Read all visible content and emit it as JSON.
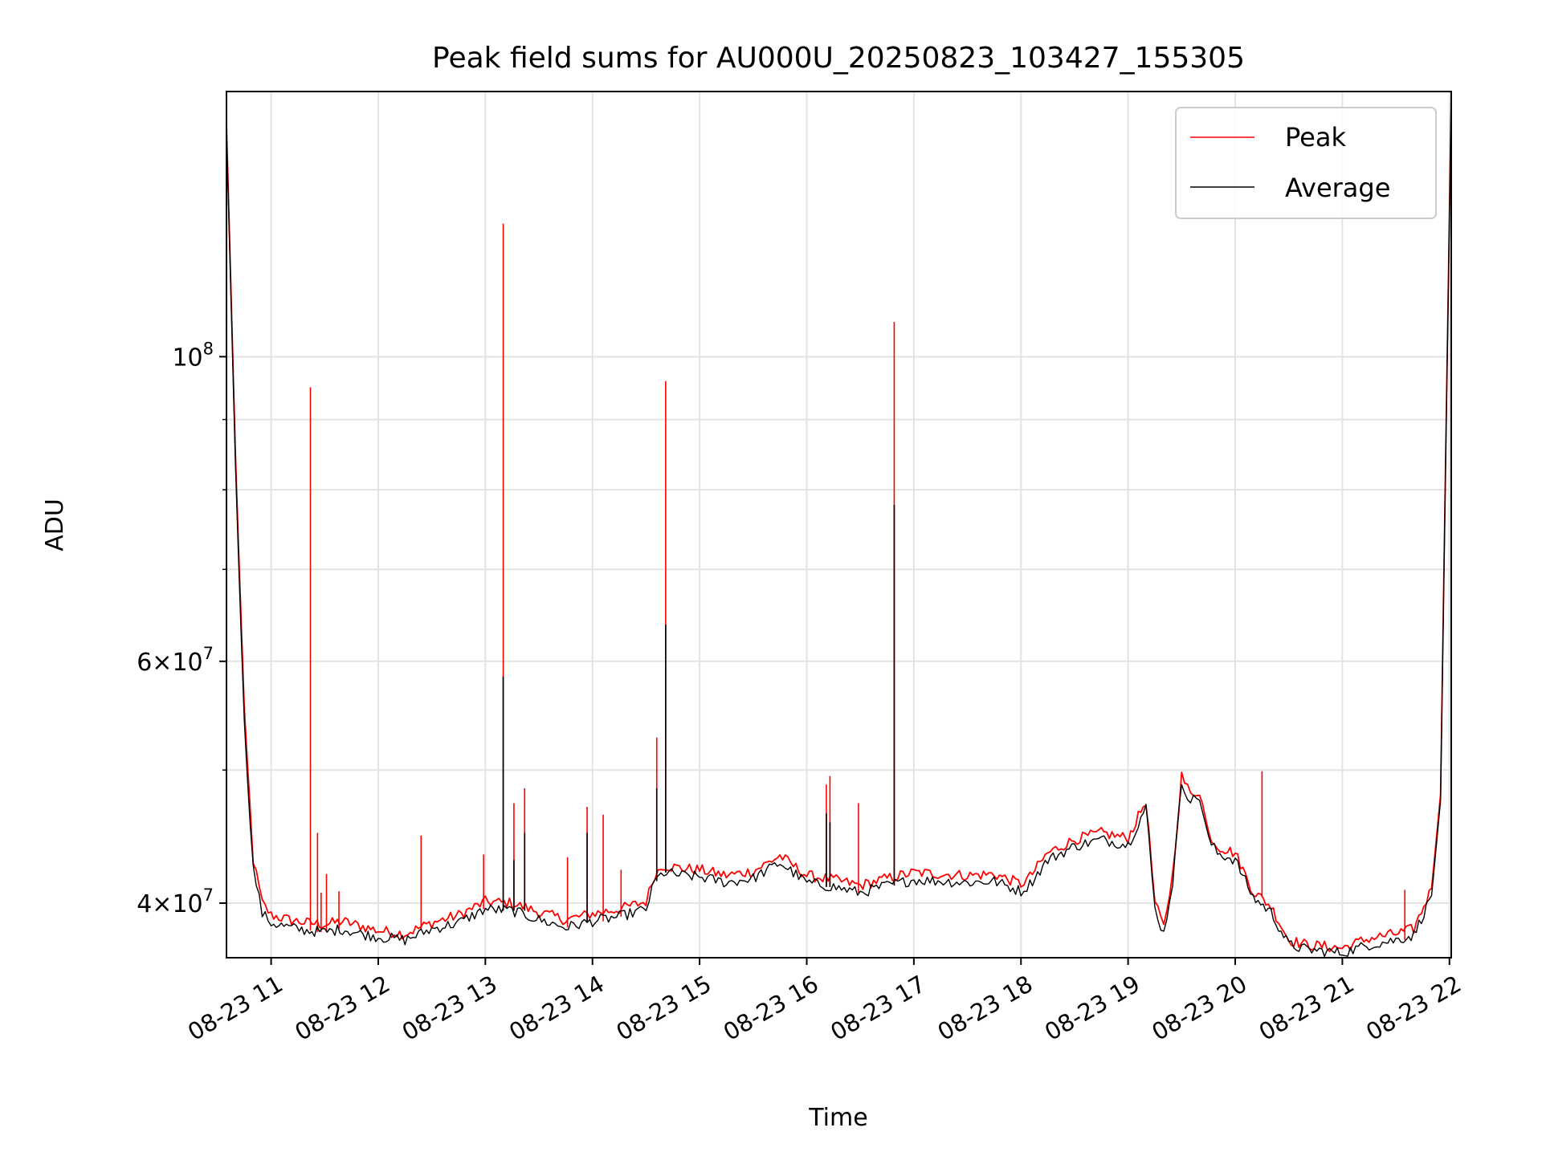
{
  "chart_data": {
    "type": "line",
    "title": "Peak field sums for AU000U_20250823_103427_155305",
    "xlabel": "Time",
    "ylabel": "ADU",
    "yscale": "log",
    "xlim": [
      "2025-08-23 10:35",
      "2025-08-23 22:01"
    ],
    "ylim": [
      36500000,
      156000000
    ],
    "grid": true,
    "legend": {
      "placement": "top-right"
    },
    "x_ticks": [
      "2025-08-23 11:00",
      "2025-08-23 12:00",
      "2025-08-23 13:00",
      "2025-08-23 14:00",
      "2025-08-23 15:00",
      "2025-08-23 16:00",
      "2025-08-23 17:00",
      "2025-08-23 18:00",
      "2025-08-23 19:00",
      "2025-08-23 20:00",
      "2025-08-23 21:00",
      "2025-08-23 22:00"
    ],
    "x_tick_labels": [
      "08-23 11",
      "08-23 12",
      "08-23 13",
      "08-23 14",
      "08-23 15",
      "08-23 16",
      "08-23 17",
      "08-23 18",
      "08-23 19",
      "08-23 20",
      "08-23 21",
      "08-23 22"
    ],
    "y_ticks": [
      {
        "value": 40000000,
        "base": "4×10",
        "exp": "7"
      },
      {
        "value": 60000000,
        "base": "6×10",
        "exp": "7"
      },
      {
        "value": 100000000,
        "base": "10",
        "exp": "8"
      }
    ],
    "y_minor_ticks": [
      50000000,
      70000000,
      80000000,
      90000000
    ],
    "series": [
      {
        "name": "Peak",
        "color": "#ff0000",
        "x": [
          "2025-08-23 10:35",
          "2025-08-23 10:40",
          "2025-08-23 10:45",
          "2025-08-23 10:50",
          "2025-08-23 10:55",
          "2025-08-23 11:00",
          "2025-08-23 11:10",
          "2025-08-23 11:20",
          "2025-08-23 11:30",
          "2025-08-23 11:40",
          "2025-08-23 11:50",
          "2025-08-23 12:00",
          "2025-08-23 12:15",
          "2025-08-23 12:30",
          "2025-08-23 12:45",
          "2025-08-23 13:00",
          "2025-08-23 13:15",
          "2025-08-23 13:30",
          "2025-08-23 13:45",
          "2025-08-23 14:00",
          "2025-08-23 14:15",
          "2025-08-23 14:30",
          "2025-08-23 14:35",
          "2025-08-23 14:40",
          "2025-08-23 14:50",
          "2025-08-23 15:00",
          "2025-08-23 15:15",
          "2025-08-23 15:30",
          "2025-08-23 15:45",
          "2025-08-23 16:00",
          "2025-08-23 16:15",
          "2025-08-23 16:30",
          "2025-08-23 16:45",
          "2025-08-23 17:00",
          "2025-08-23 17:15",
          "2025-08-23 17:30",
          "2025-08-23 17:45",
          "2025-08-23 18:00",
          "2025-08-23 18:05",
          "2025-08-23 18:15",
          "2025-08-23 18:30",
          "2025-08-23 18:45",
          "2025-08-23 19:00",
          "2025-08-23 19:10",
          "2025-08-23 19:15",
          "2025-08-23 19:20",
          "2025-08-23 19:25",
          "2025-08-23 19:30",
          "2025-08-23 19:35",
          "2025-08-23 19:40",
          "2025-08-23 19:45",
          "2025-08-23 19:50",
          "2025-08-23 20:00",
          "2025-08-23 20:10",
          "2025-08-23 20:20",
          "2025-08-23 20:30",
          "2025-08-23 20:40",
          "2025-08-23 20:50",
          "2025-08-23 21:00",
          "2025-08-23 21:15",
          "2025-08-23 21:30",
          "2025-08-23 21:40",
          "2025-08-23 21:50",
          "2025-08-23 21:55",
          "2025-08-23 22:01"
        ],
        "y": [
          148000000,
          85000000,
          55000000,
          43000000,
          40000000,
          39200000,
          38900000,
          38700000,
          38600000,
          38800000,
          38500000,
          38200000,
          38000000,
          38700000,
          39200000,
          40100000,
          40000000,
          39400000,
          38900000,
          39300000,
          39600000,
          40100000,
          42000000,
          42600000,
          42400000,
          42300000,
          41900000,
          42200000,
          43300000,
          41900000,
          41600000,
          41200000,
          41700000,
          42100000,
          42000000,
          41900000,
          42000000,
          41300000,
          41800000,
          43500000,
          44500000,
          45000000,
          44600000,
          47500000,
          40000000,
          38400000,
          42000000,
          49500000,
          48000000,
          48300000,
          45000000,
          44000000,
          43500000,
          40800000,
          39800000,
          37600000,
          37300000,
          37200000,
          37100000,
          37700000,
          38000000,
          38300000,
          41000000,
          48000000,
          156000000
        ],
        "spikes": [
          {
            "x": "2025-08-23 11:22",
            "y": 95000000
          },
          {
            "x": "2025-08-23 11:26",
            "y": 45000000
          },
          {
            "x": "2025-08-23 11:28",
            "y": 40700000
          },
          {
            "x": "2025-08-23 11:31",
            "y": 42000000
          },
          {
            "x": "2025-08-23 11:38",
            "y": 40800000
          },
          {
            "x": "2025-08-23 12:24",
            "y": 44800000
          },
          {
            "x": "2025-08-23 12:59",
            "y": 43400000
          },
          {
            "x": "2025-08-23 13:10",
            "y": 125000000
          },
          {
            "x": "2025-08-23 13:16",
            "y": 47300000
          },
          {
            "x": "2025-08-23 13:22",
            "y": 48500000
          },
          {
            "x": "2025-08-23 13:46",
            "y": 43200000
          },
          {
            "x": "2025-08-23 13:57",
            "y": 47000000
          },
          {
            "x": "2025-08-23 14:06",
            "y": 46400000
          },
          {
            "x": "2025-08-23 14:16",
            "y": 42300000
          },
          {
            "x": "2025-08-23 14:36",
            "y": 52800000
          },
          {
            "x": "2025-08-23 14:41",
            "y": 96000000
          },
          {
            "x": "2025-08-23 16:11",
            "y": 48800000
          },
          {
            "x": "2025-08-23 16:13",
            "y": 49500000
          },
          {
            "x": "2025-08-23 16:29",
            "y": 47300000
          },
          {
            "x": "2025-08-23 16:49",
            "y": 106000000
          },
          {
            "x": "2025-08-23 20:15",
            "y": 49900000
          },
          {
            "x": "2025-08-23 21:35",
            "y": 40900000
          }
        ]
      },
      {
        "name": "Average",
        "color": "#000000",
        "x": [
          "2025-08-23 10:35",
          "2025-08-23 10:40",
          "2025-08-23 10:45",
          "2025-08-23 10:50",
          "2025-08-23 10:55",
          "2025-08-23 11:00",
          "2025-08-23 11:10",
          "2025-08-23 11:20",
          "2025-08-23 11:30",
          "2025-08-23 11:40",
          "2025-08-23 11:50",
          "2025-08-23 12:00",
          "2025-08-23 12:15",
          "2025-08-23 12:30",
          "2025-08-23 12:45",
          "2025-08-23 13:00",
          "2025-08-23 13:15",
          "2025-08-23 13:30",
          "2025-08-23 13:45",
          "2025-08-23 14:00",
          "2025-08-23 14:15",
          "2025-08-23 14:30",
          "2025-08-23 14:35",
          "2025-08-23 14:40",
          "2025-08-23 14:50",
          "2025-08-23 15:00",
          "2025-08-23 15:15",
          "2025-08-23 15:30",
          "2025-08-23 15:45",
          "2025-08-23 16:00",
          "2025-08-23 16:15",
          "2025-08-23 16:30",
          "2025-08-23 16:45",
          "2025-08-23 17:00",
          "2025-08-23 17:15",
          "2025-08-23 17:30",
          "2025-08-23 17:45",
          "2025-08-23 18:00",
          "2025-08-23 18:05",
          "2025-08-23 18:15",
          "2025-08-23 18:30",
          "2025-08-23 18:45",
          "2025-08-23 19:00",
          "2025-08-23 19:10",
          "2025-08-23 19:15",
          "2025-08-23 19:20",
          "2025-08-23 19:25",
          "2025-08-23 19:30",
          "2025-08-23 19:35",
          "2025-08-23 19:40",
          "2025-08-23 19:45",
          "2025-08-23 19:50",
          "2025-08-23 20:00",
          "2025-08-23 20:10",
          "2025-08-23 20:20",
          "2025-08-23 20:30",
          "2025-08-23 20:40",
          "2025-08-23 20:50",
          "2025-08-23 21:00",
          "2025-08-23 21:15",
          "2025-08-23 21:30",
          "2025-08-23 21:40",
          "2025-08-23 21:50",
          "2025-08-23 21:55",
          "2025-08-23 22:01"
        ],
        "y": [
          146000000,
          84000000,
          54000000,
          42400000,
          39300000,
          38700000,
          38400000,
          38200000,
          38100000,
          38300000,
          38000000,
          37800000,
          37600000,
          38300000,
          38700000,
          39600000,
          39500000,
          38900000,
          38400000,
          38800000,
          39100000,
          39600000,
          41500000,
          42100000,
          41900000,
          41800000,
          41400000,
          41700000,
          42800000,
          41400000,
          41100000,
          40700000,
          41200000,
          41600000,
          41500000,
          41400000,
          41500000,
          40800000,
          41300000,
          43000000,
          44000000,
          44500000,
          44100000,
          47000000,
          39600000,
          38000000,
          41500000,
          49000000,
          47500000,
          47800000,
          44500000,
          43500000,
          43000000,
          40400000,
          39400000,
          37300000,
          37000000,
          36900000,
          36800000,
          37300000,
          37600000,
          37900000,
          40500000,
          47500000,
          155000000
        ],
        "spikes": [
          {
            "x": "2025-08-23 13:10",
            "y": 58500000
          },
          {
            "x": "2025-08-23 13:16",
            "y": 43000000
          },
          {
            "x": "2025-08-23 13:22",
            "y": 45000000
          },
          {
            "x": "2025-08-23 13:57",
            "y": 45000000
          },
          {
            "x": "2025-08-23 14:36",
            "y": 48500000
          },
          {
            "x": "2025-08-23 14:41",
            "y": 63800000
          },
          {
            "x": "2025-08-23 16:11",
            "y": 46500000
          },
          {
            "x": "2025-08-23 16:13",
            "y": 45800000
          },
          {
            "x": "2025-08-23 16:49",
            "y": 78000000
          }
        ]
      }
    ]
  }
}
